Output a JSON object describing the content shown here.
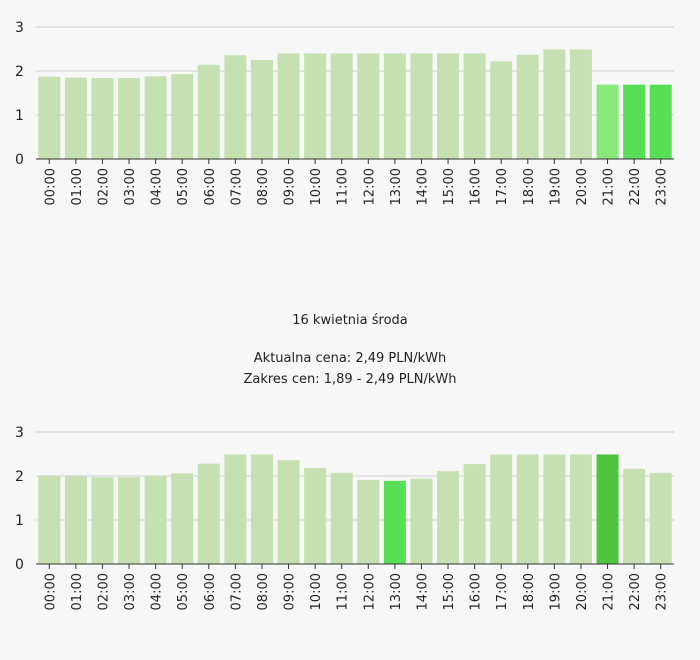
{
  "colors": {
    "bar_default": "#c5e1b1",
    "bar_light_green": "#86e97a",
    "bar_green": "#57e055",
    "bar_dark_green": "#4ec43f",
    "grid": "#cccccc",
    "axis": "#333333"
  },
  "info": {
    "day_title": "16 kwietnia środa",
    "current_price": "Aktualna cena: 2,49 PLN/kWh",
    "price_range": "Zakres cen: 1,89 - 2,49 PLN/kWh"
  },
  "chart_data": [
    {
      "type": "bar",
      "title": "",
      "xlabel": "",
      "ylabel": "",
      "ylim": [
        0,
        3
      ],
      "yticks": [
        "0",
        "1",
        "2",
        "3"
      ],
      "grid": true,
      "categories": [
        "00:00",
        "01:00",
        "02:00",
        "03:00",
        "04:00",
        "05:00",
        "06:00",
        "07:00",
        "08:00",
        "09:00",
        "10:00",
        "11:00",
        "12:00",
        "13:00",
        "14:00",
        "15:00",
        "16:00",
        "17:00",
        "18:00",
        "19:00",
        "20:00",
        "21:00",
        "22:00",
        "23:00"
      ],
      "values": [
        1.87,
        1.85,
        1.84,
        1.84,
        1.88,
        1.93,
        2.14,
        2.36,
        2.25,
        2.4,
        2.4,
        2.4,
        2.4,
        2.4,
        2.4,
        2.4,
        2.4,
        2.22,
        2.37,
        2.49,
        2.49,
        1.69,
        1.69,
        1.69
      ],
      "bar_colors": [
        "bar_default",
        "bar_default",
        "bar_default",
        "bar_default",
        "bar_default",
        "bar_default",
        "bar_default",
        "bar_default",
        "bar_default",
        "bar_default",
        "bar_default",
        "bar_default",
        "bar_default",
        "bar_default",
        "bar_default",
        "bar_default",
        "bar_default",
        "bar_default",
        "bar_default",
        "bar_default",
        "bar_default",
        "bar_light_green",
        "bar_green",
        "bar_green"
      ]
    },
    {
      "type": "bar",
      "title": "",
      "xlabel": "",
      "ylabel": "",
      "ylim": [
        0,
        3
      ],
      "yticks": [
        "0",
        "1",
        "2",
        "3"
      ],
      "grid": true,
      "categories": [
        "00:00",
        "01:00",
        "02:00",
        "03:00",
        "04:00",
        "05:00",
        "06:00",
        "07:00",
        "08:00",
        "09:00",
        "10:00",
        "11:00",
        "12:00",
        "13:00",
        "14:00",
        "15:00",
        "16:00",
        "17:00",
        "18:00",
        "19:00",
        "20:00",
        "21:00",
        "22:00",
        "23:00"
      ],
      "values": [
        2.0,
        1.99,
        1.97,
        1.97,
        2.01,
        2.06,
        2.28,
        2.49,
        2.49,
        2.36,
        2.18,
        2.07,
        1.91,
        1.89,
        1.94,
        2.11,
        2.27,
        2.49,
        2.49,
        2.49,
        2.49,
        2.49,
        2.16,
        2.07
      ],
      "bar_colors": [
        "bar_default",
        "bar_default",
        "bar_default",
        "bar_default",
        "bar_default",
        "bar_default",
        "bar_default",
        "bar_default",
        "bar_default",
        "bar_default",
        "bar_default",
        "bar_default",
        "bar_default",
        "bar_green",
        "bar_default",
        "bar_default",
        "bar_default",
        "bar_default",
        "bar_default",
        "bar_default",
        "bar_default",
        "bar_dark_green",
        "bar_default",
        "bar_default"
      ]
    }
  ]
}
